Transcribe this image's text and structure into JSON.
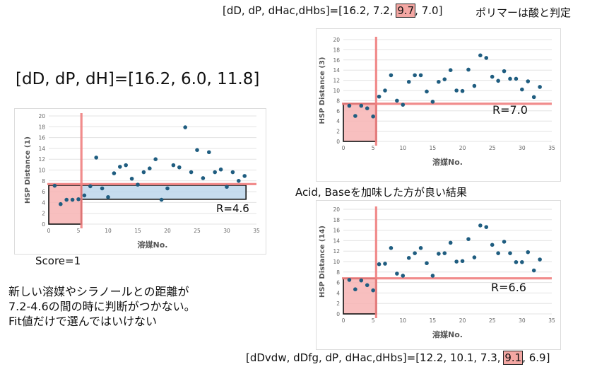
{
  "params_left": {
    "text": "[dD, dP, dH]=[16.2, 6.0, 11.8]"
  },
  "params_top": {
    "prefix": "[dD, dP, dHac,dHbs]=[16.2, 7.2, ",
    "highlight": "9.7",
    "suffix": ", 7.0]"
  },
  "params_bottom": {
    "prefix": "[dDvdw, dDfg, dP, dHac,dHbs]=[12.2, 10.1, 7.3, ",
    "highlight": "9.1",
    "suffix": ", 6.9]"
  },
  "note_polymer": "ポリマーは酸と判定",
  "note_acid_base": "Acid, Baseを加味した方が良い結果",
  "score_label": "Score=1",
  "comment_lines": [
    "新しい溶媒やシラノールとの距離が",
    "7.2-4.6の間の時に判断がつかない。",
    "Fit値だけで選んではいけない"
  ],
  "colors": {
    "point": "#1f5d80",
    "threshold": "#f08080",
    "box_fill": "#f7b4b4",
    "band_fill": "#b8d3ea"
  },
  "chart_data": [
    {
      "type": "scatter",
      "ylabel": "HSP Distance (1)",
      "xlabel": "溶媒No.",
      "xlim": [
        0,
        35
      ],
      "ylim": [
        0,
        20
      ],
      "xticks": [
        0,
        5,
        10,
        15,
        20,
        25,
        30,
        35
      ],
      "yticks": [
        0,
        2,
        4,
        6,
        8,
        10,
        12,
        14,
        16,
        18,
        20
      ],
      "x": [
        1,
        2,
        3,
        4,
        5,
        6,
        7,
        8,
        9,
        10,
        11,
        12,
        13,
        14,
        15,
        16,
        17,
        18,
        19,
        20,
        21,
        22,
        23,
        24,
        25,
        26,
        27,
        28,
        29,
        30,
        31,
        32,
        33
      ],
      "y": [
        7.1,
        3.7,
        4.5,
        4.5,
        4.6,
        5.3,
        7.0,
        12.3,
        6.6,
        5.0,
        9.4,
        10.6,
        10.9,
        8.4,
        7.3,
        9.6,
        10.3,
        12.0,
        4.5,
        6.6,
        10.9,
        10.5,
        17.9,
        9.6,
        13.7,
        8.5,
        13.3,
        9.6,
        10.1,
        6.9,
        9.6,
        8.0,
        8.9
      ],
      "threshold_x": 5.5,
      "threshold_y": 7.4,
      "band": [
        4.6,
        7.2
      ],
      "r_label": "R=4.6"
    },
    {
      "type": "scatter",
      "ylabel": "HSP Distance (3)",
      "xlabel": "溶媒No.",
      "xlim": [
        0,
        35
      ],
      "ylim": [
        0,
        20
      ],
      "xticks": [
        0,
        5,
        10,
        15,
        20,
        25,
        30,
        35
      ],
      "yticks": [
        0,
        2,
        4,
        6,
        8,
        10,
        12,
        14,
        16,
        18,
        20
      ],
      "x": [
        1,
        2,
        3,
        4,
        5,
        6,
        7,
        8,
        9,
        10,
        11,
        12,
        13,
        14,
        15,
        16,
        17,
        18,
        19,
        20,
        21,
        22,
        23,
        24,
        25,
        26,
        27,
        28,
        29,
        30,
        31,
        32,
        33
      ],
      "y": [
        7.0,
        5.0,
        7.0,
        6.5,
        4.9,
        8.8,
        10.0,
        13.0,
        8.0,
        7.2,
        11.7,
        13.0,
        13.0,
        9.8,
        7.8,
        11.7,
        12.2,
        14.0,
        10.0,
        9.9,
        14.1,
        10.9,
        16.9,
        16.4,
        12.7,
        11.9,
        13.8,
        12.3,
        12.3,
        10.2,
        11.8,
        8.7,
        10.7
      ],
      "threshold_x": 5.5,
      "threshold_y": 7.4,
      "r_label": "R=7.0"
    },
    {
      "type": "scatter",
      "ylabel": "HSP Distance (14)",
      "xlabel": "溶媒No.",
      "xlim": [
        0,
        35
      ],
      "ylim": [
        0,
        20
      ],
      "xticks": [
        0,
        5,
        10,
        15,
        20,
        25,
        30,
        35
      ],
      "yticks": [
        0,
        2,
        4,
        6,
        8,
        10,
        12,
        14,
        16,
        18,
        20
      ],
      "x": [
        1,
        2,
        3,
        4,
        5,
        6,
        7,
        8,
        9,
        10,
        11,
        12,
        13,
        14,
        15,
        16,
        17,
        18,
        19,
        20,
        21,
        22,
        23,
        24,
        25,
        26,
        27,
        28,
        29,
        30,
        31,
        32,
        33
      ],
      "y": [
        6.5,
        4.7,
        6.4,
        5.5,
        4.5,
        9.5,
        9.6,
        12.6,
        7.7,
        7.3,
        10.7,
        11.6,
        12.6,
        9.7,
        7.3,
        11.5,
        11.6,
        13.6,
        10.0,
        10.1,
        14.3,
        10.8,
        16.9,
        16.6,
        13.2,
        11.6,
        13.8,
        11.6,
        9.9,
        9.9,
        11.8,
        8.3,
        10.4
      ],
      "threshold_x": 5.5,
      "threshold_y": 6.8,
      "r_label": "R=6.6"
    }
  ]
}
